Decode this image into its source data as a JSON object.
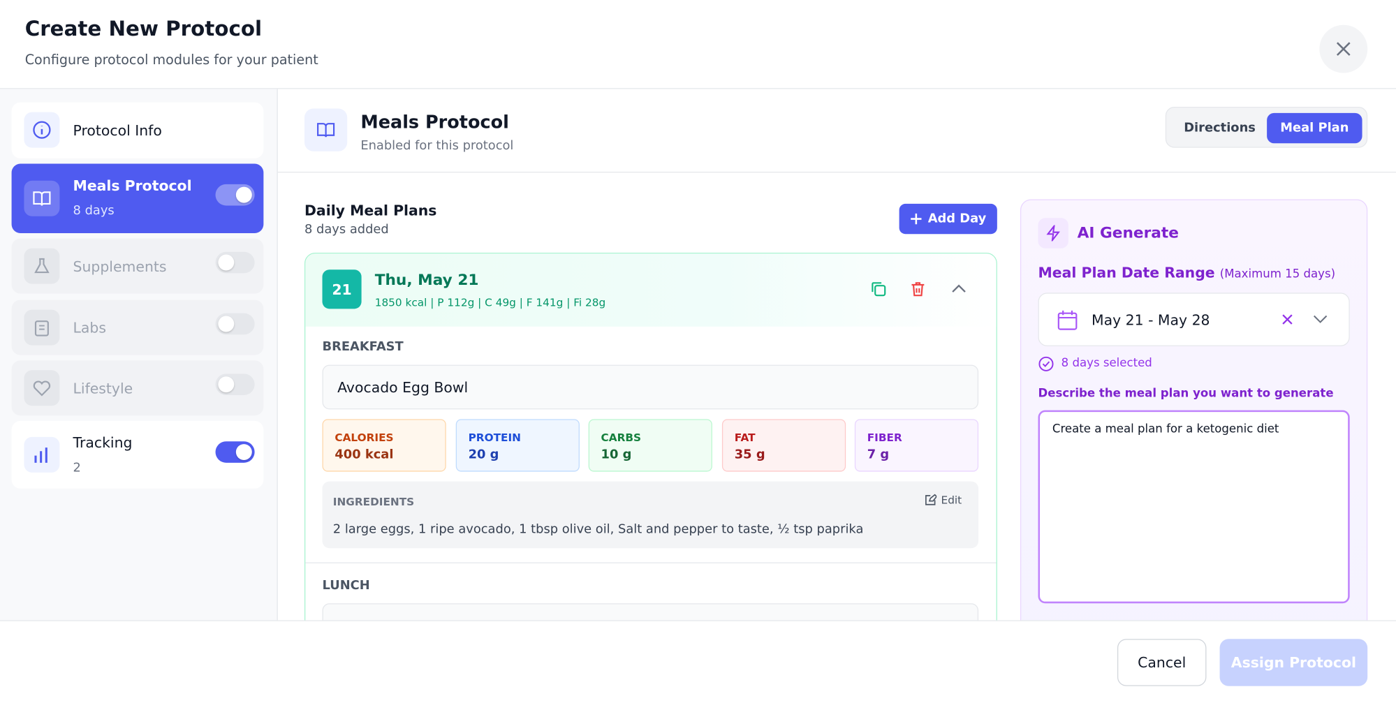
{
  "header": {
    "title": "Create New Protocol",
    "subtitle": "Configure protocol modules for your patient"
  },
  "sidebar": {
    "items": [
      {
        "label": "Protocol Info"
      },
      {
        "label": "Meals Protocol",
        "detail": "8 days",
        "enabled": true
      },
      {
        "label": "Supplements",
        "enabled": false
      },
      {
        "label": "Labs",
        "enabled": false
      },
      {
        "label": "Lifestyle",
        "enabled": false
      },
      {
        "label": "Tracking",
        "detail": "2",
        "enabled": true
      }
    ]
  },
  "module": {
    "title": "Meals Protocol",
    "subtitle": "Enabled for this protocol",
    "tabs": [
      {
        "label": "Directions",
        "active": false
      },
      {
        "label": "Meal Plan",
        "active": true
      }
    ]
  },
  "plans": {
    "title": "Daily Meal Plans",
    "count": "8 days added",
    "add_button": "Add Day",
    "day": {
      "badge": "21",
      "date": "Thu, May 21",
      "summary": "1850 kcal | P 112g | C 49g | F 141g | Fi 28g",
      "meals": [
        {
          "name": "BREAKFAST",
          "dish": "Avocado Egg Bowl",
          "nutrients": [
            {
              "label": "CALORIES",
              "value": "400 kcal"
            },
            {
              "label": "PROTEIN",
              "value": "20 g"
            },
            {
              "label": "CARBS",
              "value": "10 g"
            },
            {
              "label": "FAT",
              "value": "35 g"
            },
            {
              "label": "FIBER",
              "value": "7 g"
            }
          ],
          "ingredients_label": "INGREDIENTS",
          "edit": "Edit",
          "ingredients": "2 large eggs, 1 ripe avocado, 1 tbsp olive oil, Salt and pepper to taste, ½ tsp paprika"
        },
        {
          "name": "LUNCH"
        }
      ]
    }
  },
  "ai": {
    "title": "AI Generate",
    "range_label": "Meal Plan Date Range",
    "range_note": "(Maximum 15 days)",
    "range": "May 21 - May 28",
    "selected": "8 days selected",
    "prompt_label": "Describe the meal plan you want to generate",
    "prompt": "Create a meal plan for a ketogenic diet"
  },
  "footer": {
    "cancel": "Cancel",
    "assign": "Assign Protocol"
  }
}
